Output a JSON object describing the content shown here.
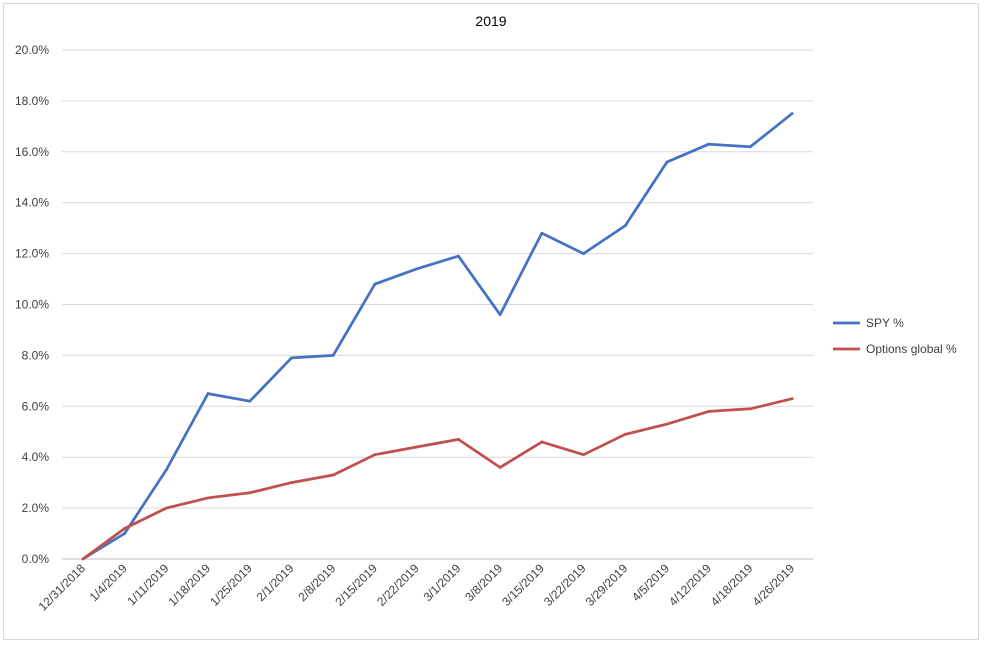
{
  "chart_data": {
    "type": "line",
    "title": "2019",
    "xlabel": "",
    "ylabel": "",
    "categories": [
      "12/31/2018",
      "1/4/2019",
      "1/11/2019",
      "1/18/2019",
      "1/25/2019",
      "2/1/2019",
      "2/8/2019",
      "2/15/2019",
      "2/22/2019",
      "3/1/2019",
      "3/8/2019",
      "3/15/2019",
      "3/22/2019",
      "3/29/2019",
      "4/5/2019",
      "4/12/2019",
      "4/18/2019",
      "4/26/2019"
    ],
    "series": [
      {
        "name": "SPY %",
        "color": "#4472C4",
        "values": [
          0.0,
          1.0,
          3.5,
          6.5,
          6.2,
          7.9,
          8.0,
          10.8,
          11.4,
          11.9,
          9.6,
          12.8,
          12.0,
          13.1,
          15.6,
          16.3,
          16.2,
          17.5
        ]
      },
      {
        "name": "Options global %",
        "color": "#C0504D",
        "values": [
          0.0,
          1.2,
          2.0,
          2.4,
          2.6,
          3.0,
          3.3,
          4.1,
          4.4,
          4.7,
          3.6,
          4.6,
          4.1,
          4.9,
          5.3,
          5.8,
          5.9,
          6.3
        ]
      }
    ],
    "yticks": [
      "0.0%",
      "2.0%",
      "4.0%",
      "6.0%",
      "8.0%",
      "10.0%",
      "12.0%",
      "14.0%",
      "16.0%",
      "18.0%",
      "20.0%"
    ],
    "ylim": [
      0,
      20
    ],
    "grid": true,
    "legend": "right"
  }
}
